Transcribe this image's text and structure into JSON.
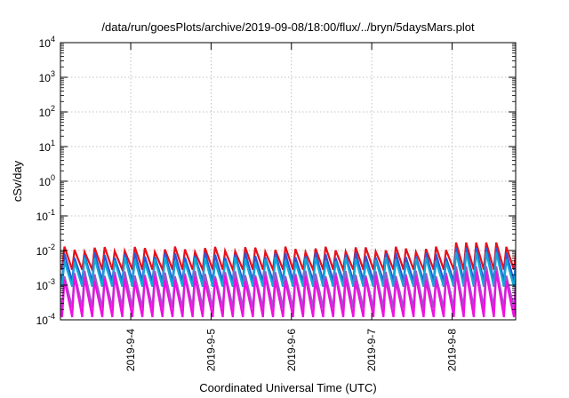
{
  "chart_data": {
    "type": "line",
    "title": "/data/run/goesPlots/archive/2019-09-08/18:00/flux/../bryn/5daysMars.plot",
    "xlabel": "Coordinated Universal Time (UTC)",
    "ylabel": "cSv/day",
    "y_scale": "log",
    "ylim": [
      0.0001,
      10000
    ],
    "xlim": [
      "2019-09-03T03:00",
      "2019-09-08T19:00"
    ],
    "grid": true,
    "legend": "none",
    "x_ticks": [
      "2019-9-4",
      "2019-9-5",
      "2019-9-6",
      "2019-9-7",
      "2019-9-8"
    ],
    "y_ticks": [
      {
        "value": 0.0001,
        "base": "10",
        "exp": "-4"
      },
      {
        "value": 0.001,
        "base": "10",
        "exp": "-3"
      },
      {
        "value": 0.01,
        "base": "10",
        "exp": "-2"
      },
      {
        "value": 0.1,
        "base": "10",
        "exp": "-1"
      },
      {
        "value": 1,
        "base": "10",
        "exp": "0"
      },
      {
        "value": 10,
        "base": "10",
        "exp": "1"
      },
      {
        "value": 100,
        "base": "10",
        "exp": "2"
      },
      {
        "value": 1000,
        "base": "10",
        "exp": "3"
      },
      {
        "value": 10000,
        "base": "10",
        "exp": "4"
      }
    ],
    "pattern": {
      "period_hours": 3,
      "phase_hours": 0.5,
      "peak_hours_in_cycle": 0.7
    },
    "series": [
      {
        "color": "#e8101a",
        "peak": 0.011,
        "trough": 0.0028,
        "bump_peak": 0.017
      },
      {
        "color": "#2a5ad8",
        "peak": 0.0075,
        "trough": 0.0013,
        "bump_peak": 0.012
      },
      {
        "color": "#12a8d8",
        "peak": 0.0055,
        "trough": 0.0009,
        "bump_peak": 0.009
      },
      {
        "color": "#9a58c8",
        "peak": 0.0022,
        "trough": 0.00022,
        "bump_peak": 0.0035
      },
      {
        "color": "#ee10e0",
        "peak": 0.0016,
        "trough": 0.00012,
        "bump_peak": 0.0025
      }
    ]
  }
}
